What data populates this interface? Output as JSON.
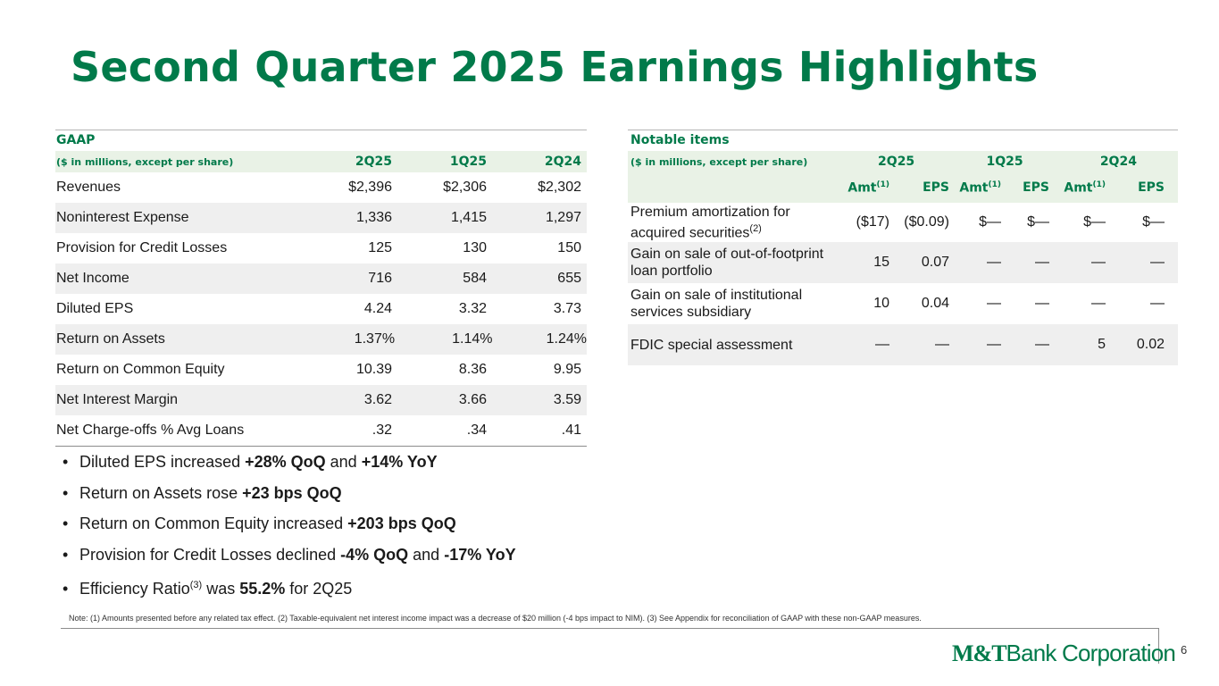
{
  "title": "Second Quarter 2025 Earnings Highlights",
  "gaap": {
    "heading": "GAAP",
    "units": "($ in millions, except per share)",
    "columns": [
      "2Q25",
      "1Q25",
      "2Q24"
    ],
    "rows": [
      {
        "label": "Revenues",
        "values": [
          "$2,396",
          "$2,306",
          "$2,302"
        ]
      },
      {
        "label": "Noninterest Expense",
        "values": [
          "1,336",
          "1,415",
          "1,297"
        ]
      },
      {
        "label": "Provision for Credit Losses",
        "values": [
          "125",
          "130",
          "150"
        ]
      },
      {
        "label": "Net Income",
        "values": [
          "716",
          "584",
          "655"
        ]
      },
      {
        "label": "Diluted EPS",
        "values": [
          "4.24",
          "3.32",
          "3.73"
        ]
      },
      {
        "label": "Return on Assets",
        "values": [
          "1.37%",
          "1.14%",
          "1.24%"
        ]
      },
      {
        "label": "Return on Common Equity",
        "values": [
          "10.39",
          "8.36",
          "9.95"
        ]
      },
      {
        "label": "Net Interest Margin",
        "values": [
          "3.62",
          "3.66",
          "3.59"
        ]
      },
      {
        "label": "Net Charge-offs % Avg Loans",
        "values": [
          ".32",
          ".34",
          ".41"
        ]
      }
    ]
  },
  "bullets": [
    {
      "pre": "Diluted EPS increased ",
      "b1": "+28% QoQ",
      "mid": " and ",
      "b2": "+14% YoY",
      "post": ""
    },
    {
      "pre": "Return on Assets rose ",
      "b1": "+23 bps QoQ",
      "mid": "",
      "b2": "",
      "post": ""
    },
    {
      "pre": "Return on Common Equity increased ",
      "b1": "+203 bps QoQ",
      "mid": "",
      "b2": "",
      "post": ""
    },
    {
      "pre": "Provision for Credit Losses declined ",
      "b1": "-4% QoQ",
      "mid": " and ",
      "b2": "-17% YoY",
      "post": ""
    },
    {
      "pre": "Efficiency Ratio",
      "sup": "(3)",
      "mid": " was ",
      "b1": "55.2%",
      "post": " for 2Q25"
    }
  ],
  "bullet_glyph": "•",
  "notable": {
    "heading": "Notable items",
    "units": "($ in millions, except per share)",
    "groups": [
      "2Q25",
      "1Q25",
      "2Q24"
    ],
    "amt_label": "Amt",
    "amt_sup": "(1)",
    "eps_label": "EPS",
    "rows": [
      {
        "label": "Premium amortization for acquired securities",
        "sup": "(2)",
        "values": [
          "($17)",
          "($0.09)",
          "$—",
          "$—",
          "$—",
          "$—"
        ]
      },
      {
        "label": "Gain on sale of out-of-footprint loan portfolio",
        "sup": "",
        "values": [
          "15",
          "0.07",
          "—",
          "—",
          "—",
          "—"
        ]
      },
      {
        "label": "Gain on sale of institutional services subsidiary",
        "sup": "",
        "values": [
          "10",
          "0.04",
          "—",
          "—",
          "—",
          "—"
        ]
      },
      {
        "label": "FDIC special assessment",
        "sup": "",
        "values": [
          "—",
          "—",
          "—",
          "—",
          "5",
          "0.02"
        ]
      }
    ]
  },
  "note": "Note: (1) Amounts presented before any related tax effect. (2) Taxable-equivalent net interest income impact was a decrease of $20 million (-4 bps impact to NIM).  (3) See Appendix for reconciliation of GAAP with these non-GAAP measures.",
  "logo": {
    "mark": "M&T",
    "rest": "Bank Corporation"
  },
  "page_number": "6",
  "colors": {
    "brand_green": "#017a4a",
    "header_band": "#e9f2e6",
    "row_shade": "#efefef"
  }
}
